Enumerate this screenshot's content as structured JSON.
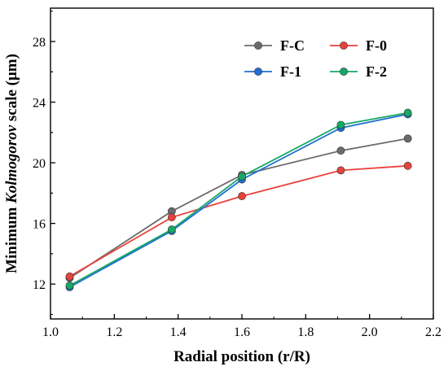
{
  "chart_data": {
    "type": "line",
    "xlabel": "Radial position (r/R)",
    "ylabel_parts": [
      "Minimum ",
      "Kolmogorov",
      " scale (μm)"
    ],
    "xlim": [
      1.0,
      2.2
    ],
    "ylim": [
      9.7,
      30.2
    ],
    "xticks": [
      "1.0",
      "1.2",
      "1.4",
      "1.6",
      "1.8",
      "2.0",
      "2.2"
    ],
    "yticks": [
      "12",
      "16",
      "20",
      "24",
      "28"
    ],
    "x": [
      1.06,
      1.38,
      1.6,
      1.91,
      2.12
    ],
    "series": [
      {
        "name": "F-C",
        "color": "#6b6b6b",
        "values": [
          12.4,
          16.8,
          19.2,
          20.8,
          21.6
        ]
      },
      {
        "name": "F-0",
        "color": "#e8423c",
        "values": [
          12.5,
          16.4,
          17.8,
          19.5,
          19.8
        ]
      },
      {
        "name": "F-1",
        "color": "#1f6fd1",
        "values": [
          11.8,
          15.5,
          18.9,
          22.3,
          23.2
        ]
      },
      {
        "name": "F-2",
        "color": "#17a866",
        "values": [
          11.9,
          15.6,
          19.1,
          22.5,
          23.3
        ]
      }
    ],
    "legend_position": "top-right",
    "grid": false
  }
}
